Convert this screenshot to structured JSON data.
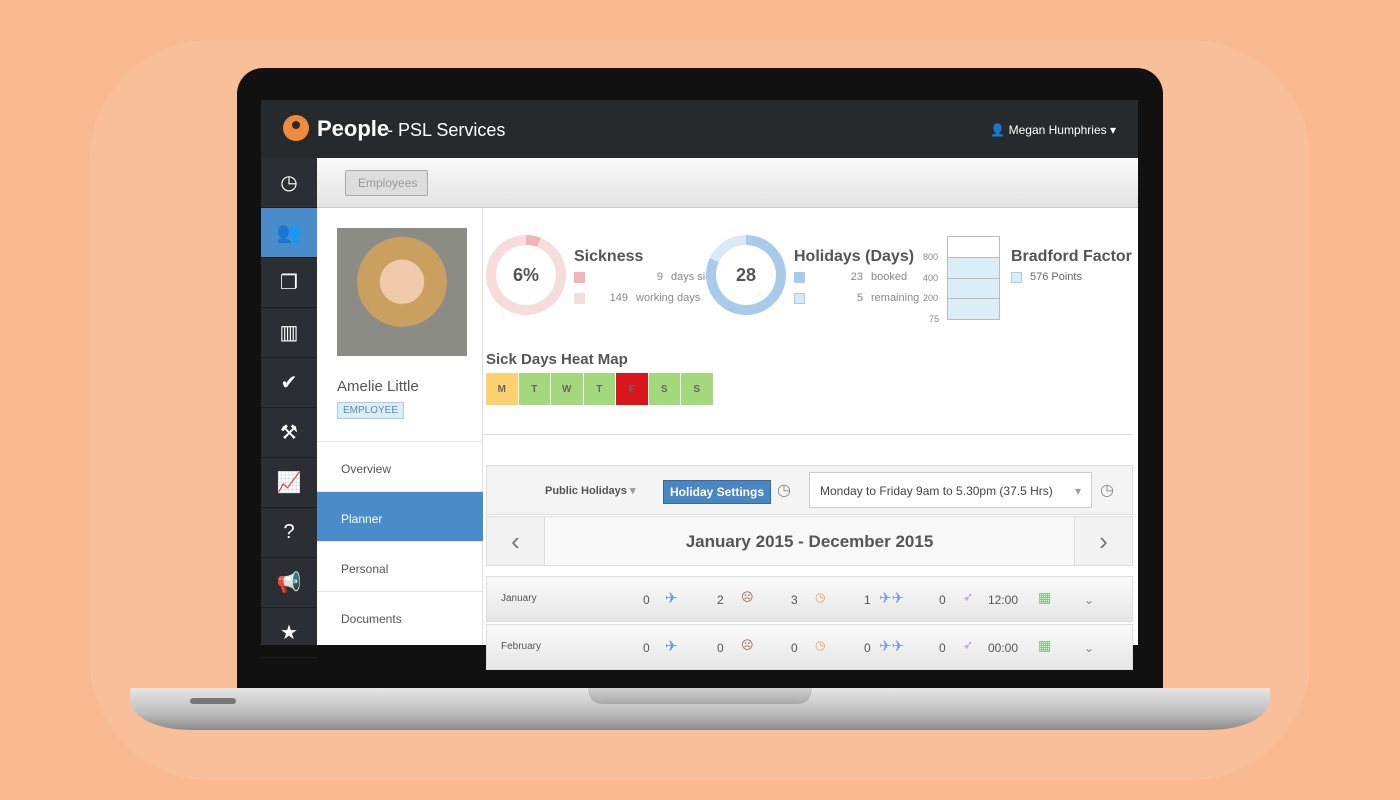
{
  "header": {
    "brand": "People",
    "company": "- PSL Services",
    "user": "Megan Humphries"
  },
  "sidebar": {
    "items": [
      {
        "icon": "dashboard-icon",
        "glyph": "◷"
      },
      {
        "icon": "users-icon",
        "glyph": "👥"
      },
      {
        "icon": "documents-icon",
        "glyph": "❐"
      },
      {
        "icon": "notebook-icon",
        "glyph": "▥"
      },
      {
        "icon": "check-icon",
        "glyph": "✔"
      },
      {
        "icon": "gavel-icon",
        "glyph": "⚒"
      },
      {
        "icon": "chart-icon",
        "glyph": "📈"
      },
      {
        "icon": "help-document-icon",
        "glyph": "?"
      },
      {
        "icon": "megaphone-icon",
        "glyph": "📢"
      },
      {
        "icon": "star-icon",
        "glyph": "★"
      }
    ]
  },
  "subheader": {
    "back": "Employees"
  },
  "profile": {
    "name": "Amelie Little",
    "role": "EMPLOYEE",
    "nav": [
      "Overview",
      "Planner",
      "Personal",
      "Documents"
    ],
    "active": "Planner"
  },
  "sickness": {
    "title": "Sickness",
    "value": "6%",
    "percent": 6,
    "items": [
      {
        "count": "9",
        "label": "days sick",
        "color": "#f0b5b8"
      },
      {
        "count": "149",
        "label": "working days",
        "color": "#f6dcdd"
      }
    ]
  },
  "holidays": {
    "title": "Holidays (Days)",
    "value": "28",
    "items": [
      {
        "count": "23",
        "label": "booked",
        "color": "#a9cbea"
      },
      {
        "count": "5",
        "label": "remaining",
        "color": "#d8eaf7"
      }
    ]
  },
  "bradford": {
    "title": "Bradford Factor",
    "legend": "576 Points",
    "ticks": [
      "800",
      "400",
      "200",
      "75"
    ],
    "value": 576
  },
  "heatmap": {
    "title": "Sick Days Heat Map",
    "days": [
      {
        "d": "M",
        "c": "#fcd271"
      },
      {
        "d": "T",
        "c": "#a4d87c"
      },
      {
        "d": "W",
        "c": "#a4d87c"
      },
      {
        "d": "T",
        "c": "#a4d87c"
      },
      {
        "d": "F",
        "c": "#d9161c"
      },
      {
        "d": "S",
        "c": "#a4d87c"
      },
      {
        "d": "S",
        "c": "#a4d87c"
      }
    ]
  },
  "toolbar": {
    "public_holidays": "Public Holidays",
    "holiday_settings": "Holiday Settings",
    "schedule": "Monday to Friday 9am to 5.30pm (37.5 Hrs)"
  },
  "period": "January 2015 - December 2015",
  "months": [
    {
      "name": "January",
      "holiday": "0",
      "sick": "2",
      "late": "3",
      "other": "1",
      "unpaid": "0",
      "time": "12:00"
    },
    {
      "name": "February",
      "holiday": "0",
      "sick": "0",
      "late": "0",
      "other": "0",
      "unpaid": "0",
      "time": "00:00"
    }
  ]
}
